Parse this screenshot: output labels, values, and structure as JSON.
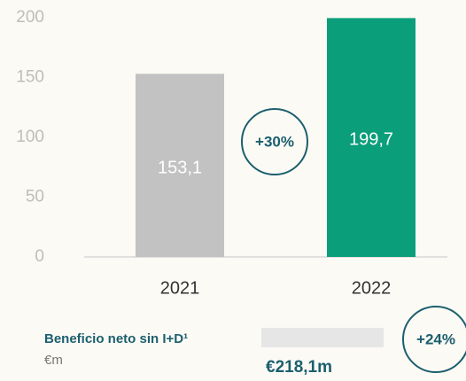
{
  "chart_data": {
    "type": "bar",
    "categories": [
      "2021",
      "2022"
    ],
    "values": [
      153.1,
      199.7
    ],
    "value_labels": [
      "153,1",
      "199,7"
    ],
    "colors": [
      "#c2c2c2",
      "#0b9e7b"
    ],
    "ylim": [
      0,
      200
    ],
    "yticks": [
      0,
      50,
      100,
      150,
      200
    ],
    "grid": false,
    "annotations": [
      "+30%",
      "Beneficio neto sin I+D¹",
      "€m",
      "€218,1m",
      "+24%"
    ]
  }
}
